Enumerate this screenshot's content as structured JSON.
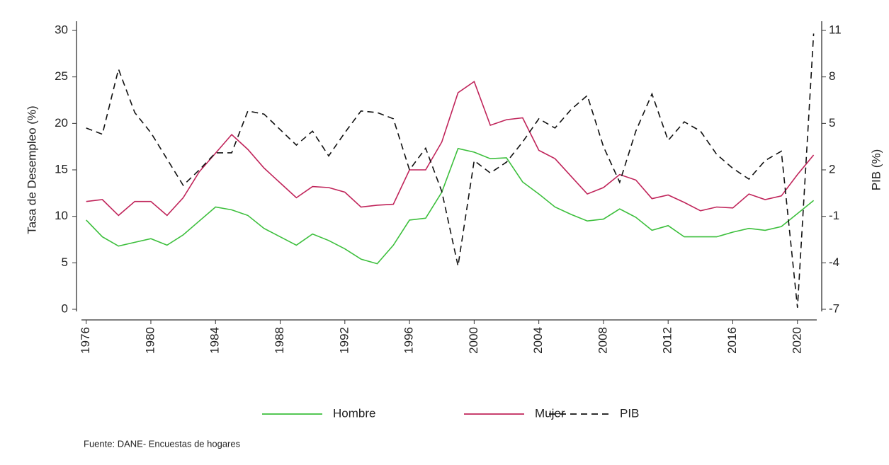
{
  "chart_data": {
    "type": "line",
    "ylabel": "Tasa de Desempleo (%)",
    "y2label": "PIB (%)",
    "source": "Fuente: DANE- Encuestas de hogares",
    "x": [
      1976,
      1977,
      1978,
      1979,
      1980,
      1981,
      1982,
      1983,
      1984,
      1985,
      1986,
      1987,
      1988,
      1989,
      1990,
      1991,
      1992,
      1993,
      1994,
      1995,
      1996,
      1997,
      1998,
      1999,
      2000,
      2001,
      2002,
      2003,
      2004,
      2005,
      2006,
      2007,
      2008,
      2009,
      2010,
      2011,
      2012,
      2013,
      2014,
      2015,
      2016,
      2017,
      2018,
      2019,
      2020,
      2021
    ],
    "series": [
      {
        "name": "Hombre",
        "color": "#3cbf3c",
        "linestyle": "solid",
        "values": [
          9.6,
          7.8,
          6.8,
          7.2,
          7.6,
          6.9,
          8.0,
          9.5,
          11.0,
          10.7,
          10.1,
          8.7,
          7.8,
          6.9,
          8.1,
          7.4,
          6.5,
          5.4,
          4.9,
          6.9,
          9.6,
          9.8,
          12.6,
          17.3,
          16.9,
          16.2,
          16.3,
          13.7,
          12.4,
          11.0,
          10.2,
          9.5,
          9.7,
          10.8,
          9.9,
          8.5,
          9.0,
          7.8,
          7.8,
          7.8,
          8.3,
          8.7,
          8.5,
          8.9,
          10.3,
          11.7
        ]
      },
      {
        "name": "Mujer",
        "color": "#c0245a",
        "linestyle": "solid",
        "values": [
          11.6,
          11.8,
          10.1,
          11.6,
          11.6,
          10.1,
          12.0,
          14.8,
          16.8,
          18.8,
          17.2,
          15.2,
          13.6,
          12.0,
          13.2,
          13.1,
          12.6,
          11.0,
          11.2,
          11.3,
          15.0,
          15.0,
          18.0,
          23.3,
          24.5,
          19.8,
          20.4,
          20.6,
          17.1,
          16.2,
          14.3,
          12.4,
          13.1,
          14.5,
          13.9,
          11.9,
          12.3,
          11.5,
          10.6,
          11.0,
          10.9,
          12.4,
          11.8,
          12.2,
          14.5,
          16.6
        ]
      },
      {
        "name": "PIB",
        "color": "#111111",
        "linestyle": "dashed",
        "axis": "y2",
        "values": [
          4.7,
          4.3,
          8.5,
          5.7,
          4.4,
          2.7,
          1.0,
          2.0,
          3.1,
          3.1,
          5.8,
          5.6,
          4.6,
          3.6,
          4.5,
          2.9,
          4.4,
          5.8,
          5.7,
          5.3,
          2.0,
          3.4,
          0.6,
          -4.2,
          2.6,
          1.8,
          2.5,
          3.8,
          5.3,
          4.7,
          5.9,
          6.8,
          3.5,
          1.2,
          4.5,
          6.9,
          3.9,
          5.1,
          4.5,
          3.0,
          2.1,
          1.4,
          2.6,
          3.2,
          -6.9,
          10.8
        ]
      }
    ],
    "xlim": [
      1975.4,
      2021.5
    ],
    "xticks": [
      1976,
      1980,
      1984,
      1988,
      1992,
      1996,
      2000,
      2004,
      2008,
      2012,
      2016,
      2020
    ],
    "ylim": [
      0,
      30
    ],
    "yticks": [
      0,
      5,
      10,
      15,
      20,
      25,
      30
    ],
    "y2lim": [
      -7,
      11
    ],
    "y2ticks": [
      -7,
      -4,
      -1,
      2,
      5,
      8,
      11
    ],
    "grid": false
  }
}
